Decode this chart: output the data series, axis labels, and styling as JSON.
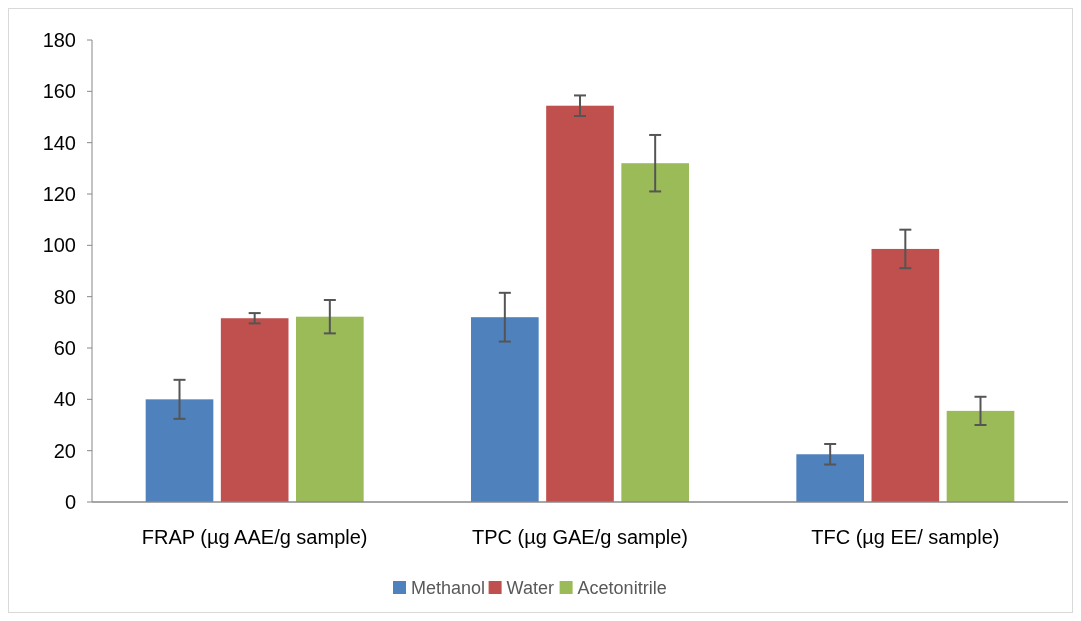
{
  "chart_data": {
    "type": "bar",
    "categories": [
      "FRAP (µg AAE/g sample)",
      "TPC (µg GAE/g sample)",
      "TFC (µg EE/ sample)"
    ],
    "series": [
      {
        "name": "Methanol",
        "color": "#4f81bd",
        "values": [
          40,
          72,
          18.6
        ],
        "errors": [
          7.6,
          9.5,
          4
        ]
      },
      {
        "name": "Water",
        "color": "#c0504d",
        "values": [
          71.6,
          154.4,
          98.6
        ],
        "errors": [
          2,
          4,
          7.5
        ]
      },
      {
        "name": "Acetonitrile",
        "color": "#9bbb59",
        "values": [
          72.2,
          132,
          35.5
        ],
        "errors": [
          6.5,
          11,
          5.5
        ]
      }
    ],
    "ylim": [
      0,
      180
    ],
    "yticks": [
      0,
      20,
      40,
      60,
      80,
      100,
      120,
      140,
      160,
      180
    ],
    "grid": false,
    "legend": "bottom"
  }
}
